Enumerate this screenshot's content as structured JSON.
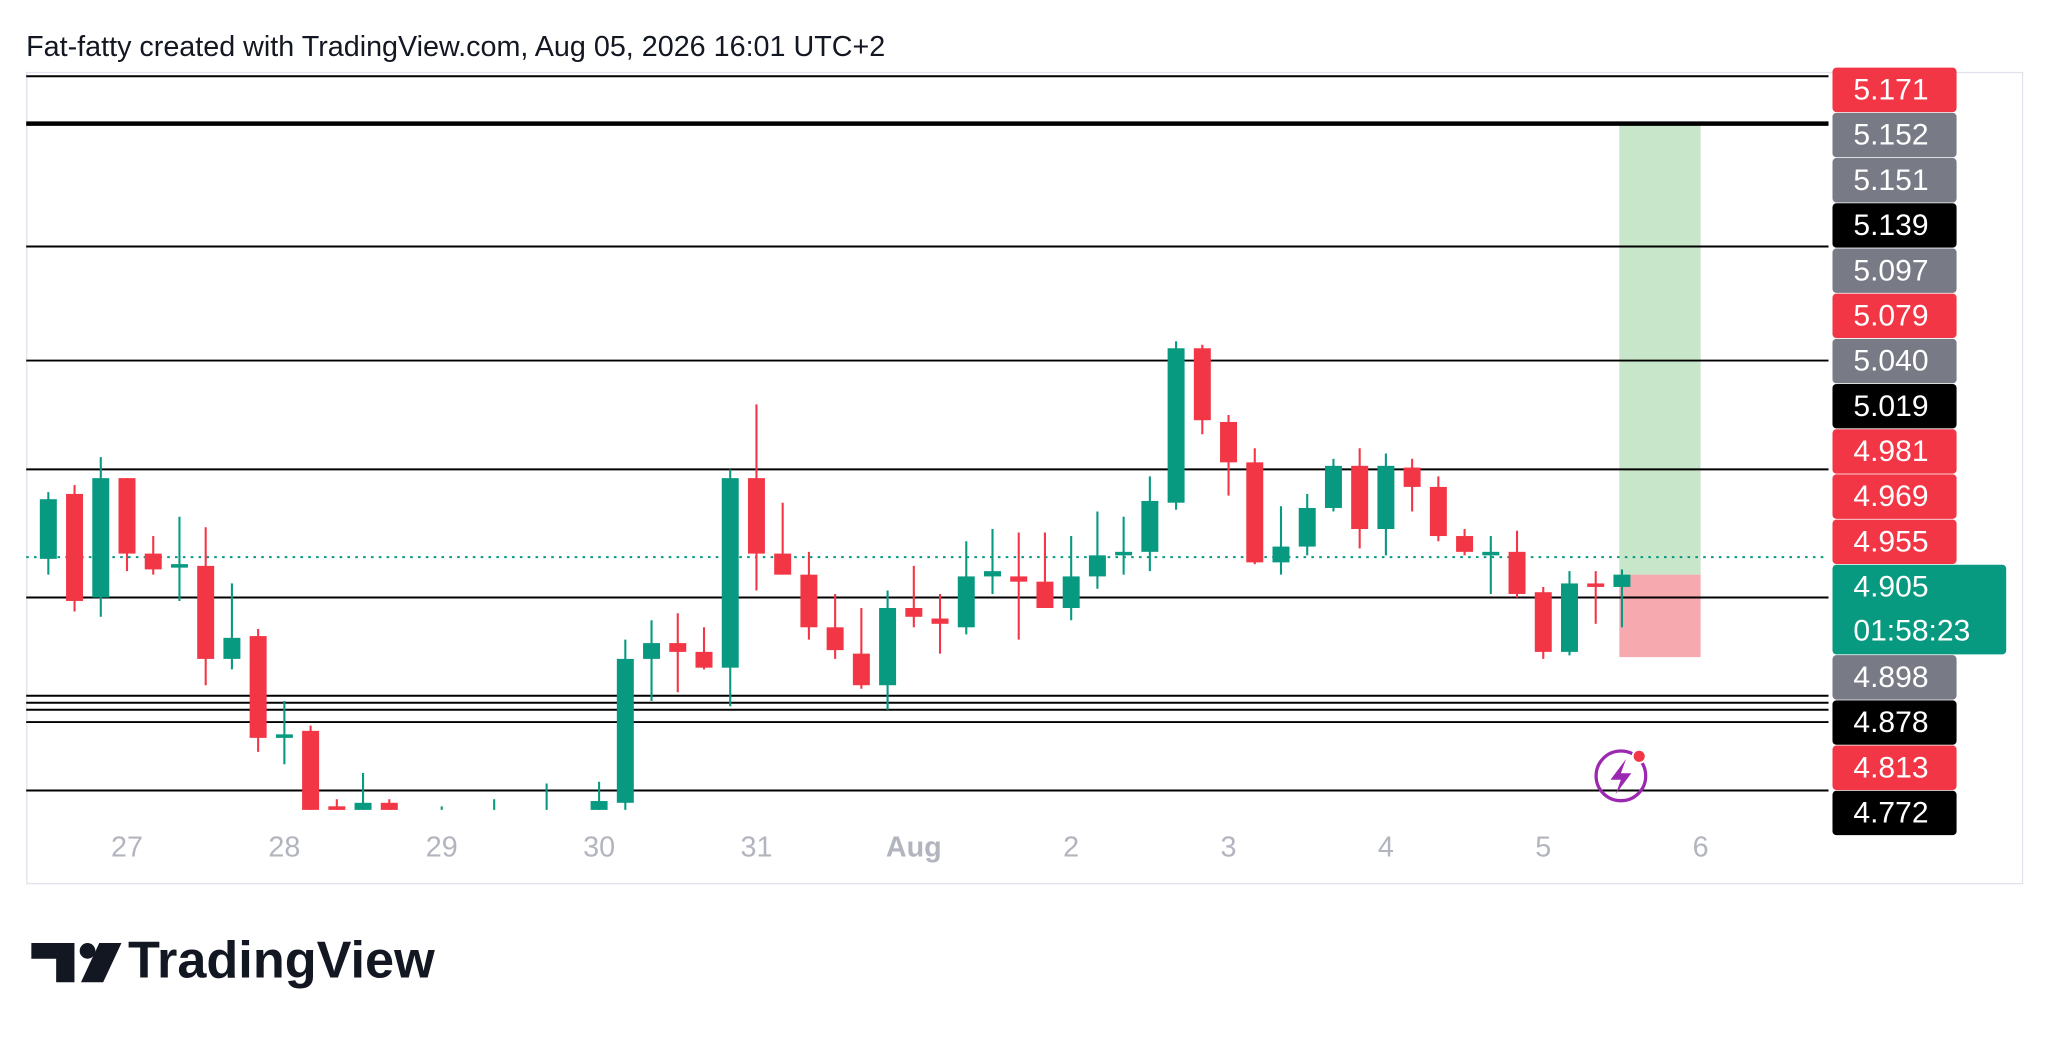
{
  "chart_data": {
    "type": "candlestick",
    "title": "Fat-fatty created with TradingView.com, Aug 05, 2026 16:01 UTC+2",
    "branding": "TradingView",
    "categories": [
      null,
      null,
      null,
      "27",
      null,
      null,
      null,
      null,
      null,
      "28",
      null,
      null,
      null,
      null,
      null,
      "29",
      null,
      null,
      null,
      null,
      null,
      "30",
      null,
      null,
      null,
      null,
      null,
      "31",
      null,
      null,
      null,
      null,
      null,
      "Aug",
      null,
      null,
      null,
      null,
      null,
      "2",
      null,
      null,
      null,
      null,
      null,
      "3",
      null,
      null,
      null,
      null,
      null,
      "4",
      null,
      null,
      null,
      null,
      null,
      "5",
      null,
      null,
      null,
      null,
      null,
      "6"
    ],
    "open": [
      4.904,
      4.941,
      4.882,
      4.95,
      4.907,
      4.899,
      4.9,
      4.847,
      4.86,
      4.802,
      4.806,
      4.763,
      4.757,
      4.765,
      4.754,
      4.742,
      4.746,
      4.731,
      4.746,
      4.739,
      4.746,
      4.757,
      4.765,
      4.847,
      4.856,
      4.851,
      4.842,
      4.95,
      4.907,
      4.895,
      4.865,
      4.85,
      4.832,
      4.876,
      4.87,
      4.865,
      4.894,
      4.894,
      4.891,
      4.876,
      4.894,
      4.906,
      4.908,
      4.936,
      5.024,
      4.982,
      4.959,
      4.902,
      4.911,
      4.933,
      4.957,
      4.921,
      4.956,
      4.945,
      4.917,
      4.906,
      4.908,
      4.885,
      4.851,
      4.89,
      4.888,
      null,
      null,
      null
    ],
    "high": [
      4.942,
      4.946,
      4.962,
      4.95,
      4.917,
      4.928,
      4.922,
      4.89,
      4.864,
      4.823,
      4.809,
      4.767,
      4.782,
      4.767,
      4.757,
      4.763,
      4.754,
      4.767,
      4.754,
      4.776,
      4.754,
      4.777,
      4.858,
      4.869,
      4.873,
      4.865,
      4.955,
      4.992,
      4.936,
      4.908,
      4.884,
      4.876,
      4.886,
      4.9,
      4.884,
      4.914,
      4.921,
      4.919,
      4.919,
      4.917,
      4.931,
      4.928,
      4.951,
      5.028,
      5.026,
      4.986,
      4.967,
      4.934,
      4.941,
      4.961,
      4.967,
      4.964,
      4.961,
      4.951,
      4.921,
      4.917,
      4.92,
      4.888,
      4.897,
      4.897,
      4.898,
      null,
      null,
      null
    ],
    "low": [
      4.895,
      4.874,
      4.871,
      4.897,
      4.895,
      4.88,
      4.832,
      4.841,
      4.794,
      4.787,
      4.739,
      4.746,
      4.746,
      4.746,
      4.731,
      4.727,
      4.724,
      4.724,
      4.727,
      4.731,
      4.727,
      4.754,
      4.757,
      4.823,
      4.828,
      4.841,
      4.82,
      4.886,
      4.895,
      4.858,
      4.847,
      4.83,
      4.818,
      4.865,
      4.85,
      4.861,
      4.884,
      4.858,
      4.876,
      4.869,
      4.887,
      4.895,
      4.897,
      4.932,
      4.975,
      4.94,
      4.901,
      4.895,
      4.906,
      4.931,
      4.91,
      4.906,
      4.931,
      4.914,
      4.906,
      4.884,
      4.882,
      4.847,
      4.849,
      4.867,
      4.865,
      null,
      null,
      null
    ],
    "close": [
      4.938,
      4.88,
      4.95,
      4.907,
      4.898,
      4.901,
      4.847,
      4.859,
      4.802,
      4.804,
      4.746,
      4.754,
      4.765,
      4.757,
      4.742,
      4.746,
      4.731,
      4.746,
      4.739,
      4.746,
      4.754,
      4.766,
      4.847,
      4.856,
      4.851,
      4.842,
      4.95,
      4.907,
      4.895,
      4.865,
      4.852,
      4.832,
      4.876,
      4.871,
      4.867,
      4.894,
      4.897,
      4.891,
      4.876,
      4.894,
      4.906,
      4.908,
      4.937,
      5.024,
      4.983,
      4.959,
      4.902,
      4.911,
      4.933,
      4.957,
      4.921,
      4.957,
      4.945,
      4.917,
      4.908,
      4.908,
      4.884,
      4.851,
      4.89,
      4.888,
      4.895,
      null,
      null,
      null
    ],
    "up_color": "#089981",
    "down_color": "#f23645",
    "ylim": [
      4.761,
      5.18
    ],
    "levels": [
      {
        "value": 5.179,
        "width": 1.5
      },
      {
        "value": 5.152,
        "width": 3.5
      },
      {
        "value": 5.082,
        "width": 1.5
      },
      {
        "value": 5.017,
        "width": 1.5
      },
      {
        "value": 4.955,
        "width": 1.5
      },
      {
        "value": 4.882,
        "width": 1.5
      },
      {
        "value": 4.826,
        "width": 1.5
      },
      {
        "value": 4.822,
        "width": 1.5
      },
      {
        "value": 4.818,
        "width": 1.5
      },
      {
        "value": 4.811,
        "width": 1.5
      },
      {
        "value": 4.772,
        "width": 1.5
      }
    ],
    "position": {
      "target": 5.152,
      "entry": 4.895,
      "stop": 4.848,
      "profit_color": "#c8e6c9",
      "loss_color": "#f7a9b0"
    },
    "badges": [
      {
        "value": 5.171,
        "label": "5.171",
        "color": "#f23645"
      },
      {
        "value": 5.152,
        "label": "5.152",
        "color": "#787b86"
      },
      {
        "value": 5.151,
        "label": "5.151",
        "color": "#787b86"
      },
      {
        "value": 5.139,
        "label": "5.139",
        "color": "#000000"
      },
      {
        "value": 5.097,
        "label": "5.097",
        "color": "#787b86"
      },
      {
        "value": 5.079,
        "label": "5.079",
        "color": "#f23645"
      },
      {
        "value": 5.04,
        "label": "5.040",
        "color": "#787b86"
      },
      {
        "value": 5.019,
        "label": "5.019",
        "color": "#000000"
      },
      {
        "value": 4.981,
        "label": "4.981",
        "color": "#f23645"
      },
      {
        "value": 4.969,
        "label": "4.969",
        "color": "#f23645"
      },
      {
        "value": 4.955,
        "label": "4.955",
        "color": "#f23645"
      },
      {
        "value": 4.905,
        "label": "4.905",
        "color": "#089981",
        "countdown": "01:58:23",
        "current": true
      },
      {
        "value": 4.898,
        "label": "4.898",
        "color": "#787b86"
      },
      {
        "value": 4.878,
        "label": "4.878",
        "color": "#000000"
      },
      {
        "value": 4.813,
        "label": "4.813",
        "color": "#f23645"
      },
      {
        "value": 4.772,
        "label": "4.772",
        "color": "#000000"
      }
    ]
  }
}
